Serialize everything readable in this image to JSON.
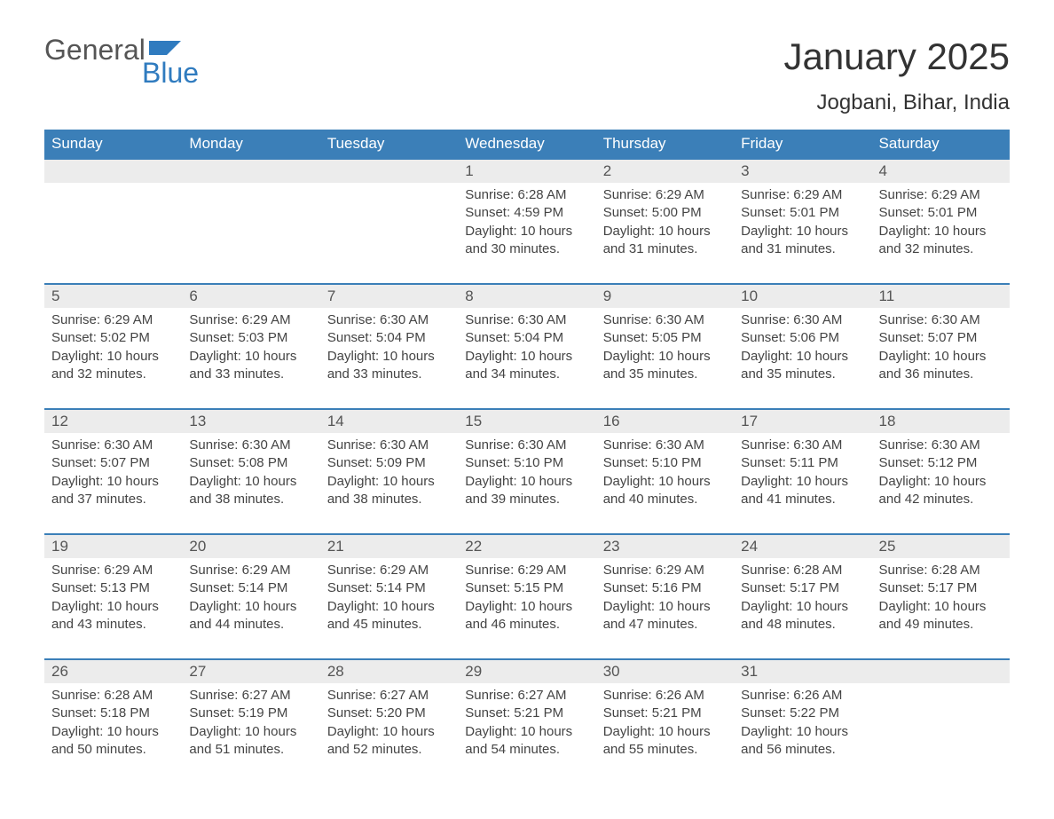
{
  "logo": {
    "text1": "General",
    "text2": "Blue",
    "flag_color": "#2f7bbf"
  },
  "title": "January 2025",
  "location": "Jogbani, Bihar, India",
  "colors": {
    "header_bg": "#3b7fb8",
    "header_text": "#ffffff",
    "daynum_bg": "#ececec",
    "border": "#3b7fb8",
    "body_text": "#444444",
    "title_text": "#333333"
  },
  "dayNames": [
    "Sunday",
    "Monday",
    "Tuesday",
    "Wednesday",
    "Thursday",
    "Friday",
    "Saturday"
  ],
  "weeks": [
    [
      null,
      null,
      null,
      {
        "n": "1",
        "sunrise": "6:28 AM",
        "sunset": "4:59 PM",
        "daylight": "10 hours and 30 minutes."
      },
      {
        "n": "2",
        "sunrise": "6:29 AM",
        "sunset": "5:00 PM",
        "daylight": "10 hours and 31 minutes."
      },
      {
        "n": "3",
        "sunrise": "6:29 AM",
        "sunset": "5:01 PM",
        "daylight": "10 hours and 31 minutes."
      },
      {
        "n": "4",
        "sunrise": "6:29 AM",
        "sunset": "5:01 PM",
        "daylight": "10 hours and 32 minutes."
      }
    ],
    [
      {
        "n": "5",
        "sunrise": "6:29 AM",
        "sunset": "5:02 PM",
        "daylight": "10 hours and 32 minutes."
      },
      {
        "n": "6",
        "sunrise": "6:29 AM",
        "sunset": "5:03 PM",
        "daylight": "10 hours and 33 minutes."
      },
      {
        "n": "7",
        "sunrise": "6:30 AM",
        "sunset": "5:04 PM",
        "daylight": "10 hours and 33 minutes."
      },
      {
        "n": "8",
        "sunrise": "6:30 AM",
        "sunset": "5:04 PM",
        "daylight": "10 hours and 34 minutes."
      },
      {
        "n": "9",
        "sunrise": "6:30 AM",
        "sunset": "5:05 PM",
        "daylight": "10 hours and 35 minutes."
      },
      {
        "n": "10",
        "sunrise": "6:30 AM",
        "sunset": "5:06 PM",
        "daylight": "10 hours and 35 minutes."
      },
      {
        "n": "11",
        "sunrise": "6:30 AM",
        "sunset": "5:07 PM",
        "daylight": "10 hours and 36 minutes."
      }
    ],
    [
      {
        "n": "12",
        "sunrise": "6:30 AM",
        "sunset": "5:07 PM",
        "daylight": "10 hours and 37 minutes."
      },
      {
        "n": "13",
        "sunrise": "6:30 AM",
        "sunset": "5:08 PM",
        "daylight": "10 hours and 38 minutes."
      },
      {
        "n": "14",
        "sunrise": "6:30 AM",
        "sunset": "5:09 PM",
        "daylight": "10 hours and 38 minutes."
      },
      {
        "n": "15",
        "sunrise": "6:30 AM",
        "sunset": "5:10 PM",
        "daylight": "10 hours and 39 minutes."
      },
      {
        "n": "16",
        "sunrise": "6:30 AM",
        "sunset": "5:10 PM",
        "daylight": "10 hours and 40 minutes."
      },
      {
        "n": "17",
        "sunrise": "6:30 AM",
        "sunset": "5:11 PM",
        "daylight": "10 hours and 41 minutes."
      },
      {
        "n": "18",
        "sunrise": "6:30 AM",
        "sunset": "5:12 PM",
        "daylight": "10 hours and 42 minutes."
      }
    ],
    [
      {
        "n": "19",
        "sunrise": "6:29 AM",
        "sunset": "5:13 PM",
        "daylight": "10 hours and 43 minutes."
      },
      {
        "n": "20",
        "sunrise": "6:29 AM",
        "sunset": "5:14 PM",
        "daylight": "10 hours and 44 minutes."
      },
      {
        "n": "21",
        "sunrise": "6:29 AM",
        "sunset": "5:14 PM",
        "daylight": "10 hours and 45 minutes."
      },
      {
        "n": "22",
        "sunrise": "6:29 AM",
        "sunset": "5:15 PM",
        "daylight": "10 hours and 46 minutes."
      },
      {
        "n": "23",
        "sunrise": "6:29 AM",
        "sunset": "5:16 PM",
        "daylight": "10 hours and 47 minutes."
      },
      {
        "n": "24",
        "sunrise": "6:28 AM",
        "sunset": "5:17 PM",
        "daylight": "10 hours and 48 minutes."
      },
      {
        "n": "25",
        "sunrise": "6:28 AM",
        "sunset": "5:17 PM",
        "daylight": "10 hours and 49 minutes."
      }
    ],
    [
      {
        "n": "26",
        "sunrise": "6:28 AM",
        "sunset": "5:18 PM",
        "daylight": "10 hours and 50 minutes."
      },
      {
        "n": "27",
        "sunrise": "6:27 AM",
        "sunset": "5:19 PM",
        "daylight": "10 hours and 51 minutes."
      },
      {
        "n": "28",
        "sunrise": "6:27 AM",
        "sunset": "5:20 PM",
        "daylight": "10 hours and 52 minutes."
      },
      {
        "n": "29",
        "sunrise": "6:27 AM",
        "sunset": "5:21 PM",
        "daylight": "10 hours and 54 minutes."
      },
      {
        "n": "30",
        "sunrise": "6:26 AM",
        "sunset": "5:21 PM",
        "daylight": "10 hours and 55 minutes."
      },
      {
        "n": "31",
        "sunrise": "6:26 AM",
        "sunset": "5:22 PM",
        "daylight": "10 hours and 56 minutes."
      },
      null
    ]
  ],
  "labels": {
    "sunrise": "Sunrise: ",
    "sunset": "Sunset: ",
    "daylight": "Daylight: "
  }
}
